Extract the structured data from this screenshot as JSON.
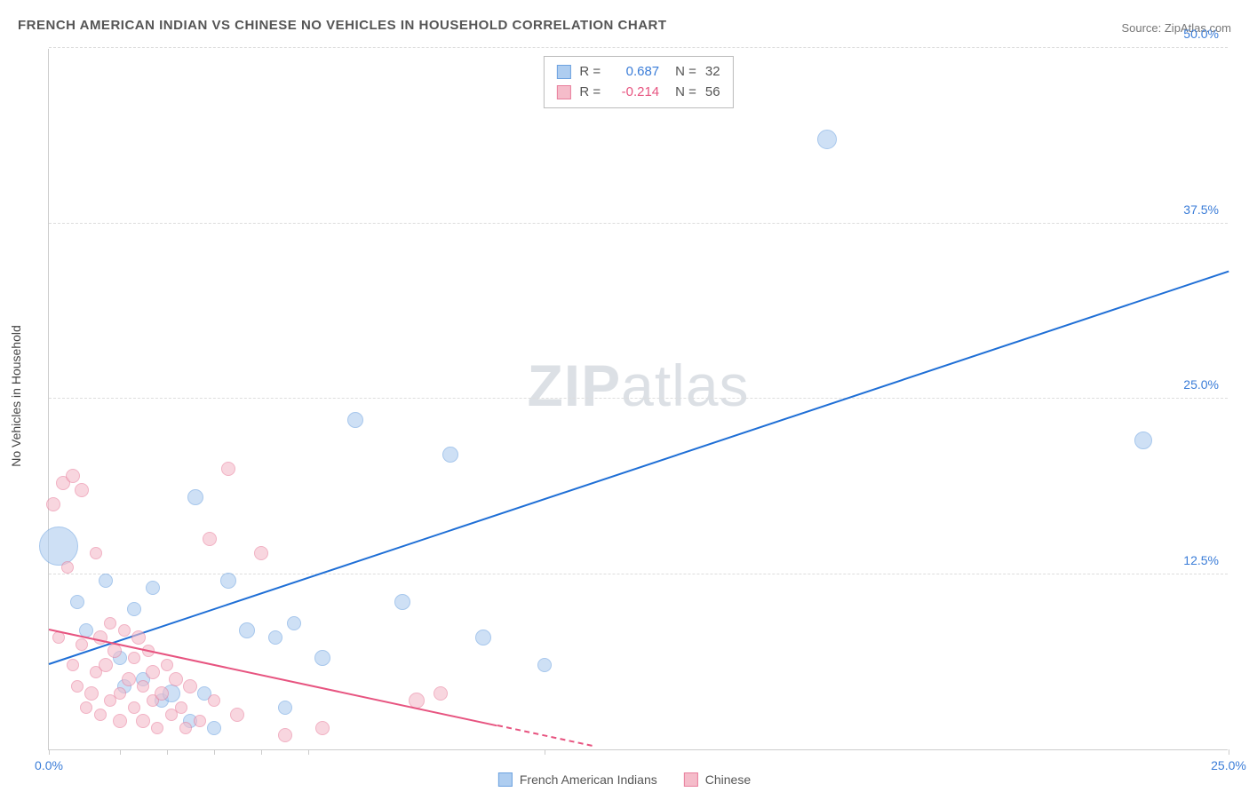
{
  "title": "FRENCH AMERICAN INDIAN VS CHINESE NO VEHICLES IN HOUSEHOLD CORRELATION CHART",
  "source": "Source: ZipAtlas.com",
  "watermark": {
    "zip": "ZIP",
    "atlas": "atlas"
  },
  "chart": {
    "type": "scatter",
    "background_color": "#ffffff",
    "grid_color": "#dddddd",
    "axis_color": "#cccccc",
    "xlim": [
      0,
      25
    ],
    "ylim": [
      0,
      50
    ],
    "yaxis_label": "No Vehicles in Household",
    "ytick_labels": [
      "12.5%",
      "25.0%",
      "37.5%",
      "50.0%"
    ],
    "ytick_positions": [
      12.5,
      25.0,
      37.5,
      50.0
    ],
    "xtick_positions": [
      0,
      1.5,
      2.5,
      3.5,
      4.5,
      5.5,
      10.5,
      25
    ],
    "xtick_labels": {
      "0": "0.0%",
      "25": "25.0%"
    },
    "label_fontsize": 14,
    "tick_color": "#3b7dd8",
    "series": [
      {
        "name": "French American Indians",
        "fill": "#aecdf0",
        "stroke": "#6da2e0",
        "fill_opacity": 0.6,
        "trend": {
          "color": "#1f6fd6",
          "x1": 0,
          "y1": 6.0,
          "x2": 25,
          "y2": 34.0,
          "dashed_from_x": null
        },
        "R": "0.687",
        "R_color": "#3b7dd8",
        "N": "32",
        "points": [
          {
            "x": 0.2,
            "y": 14.5,
            "r": 22
          },
          {
            "x": 0.6,
            "y": 10.5,
            "r": 8
          },
          {
            "x": 0.8,
            "y": 8.5,
            "r": 8
          },
          {
            "x": 1.2,
            "y": 12.0,
            "r": 8
          },
          {
            "x": 1.5,
            "y": 6.5,
            "r": 8
          },
          {
            "x": 1.6,
            "y": 4.5,
            "r": 8
          },
          {
            "x": 1.8,
            "y": 10.0,
            "r": 8
          },
          {
            "x": 2.0,
            "y": 5.0,
            "r": 8
          },
          {
            "x": 2.2,
            "y": 11.5,
            "r": 8
          },
          {
            "x": 2.4,
            "y": 3.5,
            "r": 8
          },
          {
            "x": 2.6,
            "y": 4.0,
            "r": 10
          },
          {
            "x": 3.0,
            "y": 2.0,
            "r": 8
          },
          {
            "x": 3.1,
            "y": 18.0,
            "r": 9
          },
          {
            "x": 3.3,
            "y": 4.0,
            "r": 8
          },
          {
            "x": 3.5,
            "y": 1.5,
            "r": 8
          },
          {
            "x": 3.8,
            "y": 12.0,
            "r": 9
          },
          {
            "x": 4.2,
            "y": 8.5,
            "r": 9
          },
          {
            "x": 4.8,
            "y": 8.0,
            "r": 8
          },
          {
            "x": 5.0,
            "y": 3.0,
            "r": 8
          },
          {
            "x": 5.2,
            "y": 9.0,
            "r": 8
          },
          {
            "x": 5.8,
            "y": 6.5,
            "r": 9
          },
          {
            "x": 6.5,
            "y": 23.5,
            "r": 9
          },
          {
            "x": 7.5,
            "y": 10.5,
            "r": 9
          },
          {
            "x": 8.5,
            "y": 21.0,
            "r": 9
          },
          {
            "x": 9.2,
            "y": 8.0,
            "r": 9
          },
          {
            "x": 10.5,
            "y": 6.0,
            "r": 8
          },
          {
            "x": 16.5,
            "y": 43.5,
            "r": 11
          },
          {
            "x": 23.2,
            "y": 22.0,
            "r": 10
          }
        ]
      },
      {
        "name": "Chinese",
        "fill": "#f5bcca",
        "stroke": "#e87f9d",
        "fill_opacity": 0.6,
        "trend": {
          "color": "#e75480",
          "x1": 0,
          "y1": 8.5,
          "x2": 11.5,
          "y2": 0.2,
          "dashed_from_x": 9.5
        },
        "R": "-0.214",
        "R_color": "#e75480",
        "N": "56",
        "points": [
          {
            "x": 0.1,
            "y": 17.5,
            "r": 8
          },
          {
            "x": 0.2,
            "y": 8.0,
            "r": 7
          },
          {
            "x": 0.3,
            "y": 19.0,
            "r": 8
          },
          {
            "x": 0.4,
            "y": 13.0,
            "r": 7
          },
          {
            "x": 0.5,
            "y": 19.5,
            "r": 8
          },
          {
            "x": 0.5,
            "y": 6.0,
            "r": 7
          },
          {
            "x": 0.6,
            "y": 4.5,
            "r": 7
          },
          {
            "x": 0.7,
            "y": 18.5,
            "r": 8
          },
          {
            "x": 0.7,
            "y": 7.5,
            "r": 7
          },
          {
            "x": 0.8,
            "y": 3.0,
            "r": 7
          },
          {
            "x": 0.9,
            "y": 4.0,
            "r": 8
          },
          {
            "x": 1.0,
            "y": 14.0,
            "r": 7
          },
          {
            "x": 1.0,
            "y": 5.5,
            "r": 7
          },
          {
            "x": 1.1,
            "y": 8.0,
            "r": 8
          },
          {
            "x": 1.1,
            "y": 2.5,
            "r": 7
          },
          {
            "x": 1.2,
            "y": 6.0,
            "r": 8
          },
          {
            "x": 1.3,
            "y": 9.0,
            "r": 7
          },
          {
            "x": 1.3,
            "y": 3.5,
            "r": 7
          },
          {
            "x": 1.4,
            "y": 7.0,
            "r": 8
          },
          {
            "x": 1.5,
            "y": 4.0,
            "r": 7
          },
          {
            "x": 1.5,
            "y": 2.0,
            "r": 8
          },
          {
            "x": 1.6,
            "y": 8.5,
            "r": 7
          },
          {
            "x": 1.7,
            "y": 5.0,
            "r": 8
          },
          {
            "x": 1.8,
            "y": 3.0,
            "r": 7
          },
          {
            "x": 1.8,
            "y": 6.5,
            "r": 7
          },
          {
            "x": 1.9,
            "y": 8.0,
            "r": 8
          },
          {
            "x": 2.0,
            "y": 4.5,
            "r": 7
          },
          {
            "x": 2.0,
            "y": 2.0,
            "r": 8
          },
          {
            "x": 2.1,
            "y": 7.0,
            "r": 7
          },
          {
            "x": 2.2,
            "y": 3.5,
            "r": 7
          },
          {
            "x": 2.2,
            "y": 5.5,
            "r": 8
          },
          {
            "x": 2.3,
            "y": 1.5,
            "r": 7
          },
          {
            "x": 2.4,
            "y": 4.0,
            "r": 8
          },
          {
            "x": 2.5,
            "y": 6.0,
            "r": 7
          },
          {
            "x": 2.6,
            "y": 2.5,
            "r": 7
          },
          {
            "x": 2.7,
            "y": 5.0,
            "r": 8
          },
          {
            "x": 2.8,
            "y": 3.0,
            "r": 7
          },
          {
            "x": 2.9,
            "y": 1.5,
            "r": 7
          },
          {
            "x": 3.0,
            "y": 4.5,
            "r": 8
          },
          {
            "x": 3.2,
            "y": 2.0,
            "r": 7
          },
          {
            "x": 3.4,
            "y": 15.0,
            "r": 8
          },
          {
            "x": 3.5,
            "y": 3.5,
            "r": 7
          },
          {
            "x": 3.8,
            "y": 20.0,
            "r": 8
          },
          {
            "x": 4.0,
            "y": 2.5,
            "r": 8
          },
          {
            "x": 4.5,
            "y": 14.0,
            "r": 8
          },
          {
            "x": 5.0,
            "y": 1.0,
            "r": 8
          },
          {
            "x": 5.8,
            "y": 1.5,
            "r": 8
          },
          {
            "x": 7.8,
            "y": 3.5,
            "r": 9
          },
          {
            "x": 8.3,
            "y": 4.0,
            "r": 8
          }
        ]
      }
    ]
  }
}
